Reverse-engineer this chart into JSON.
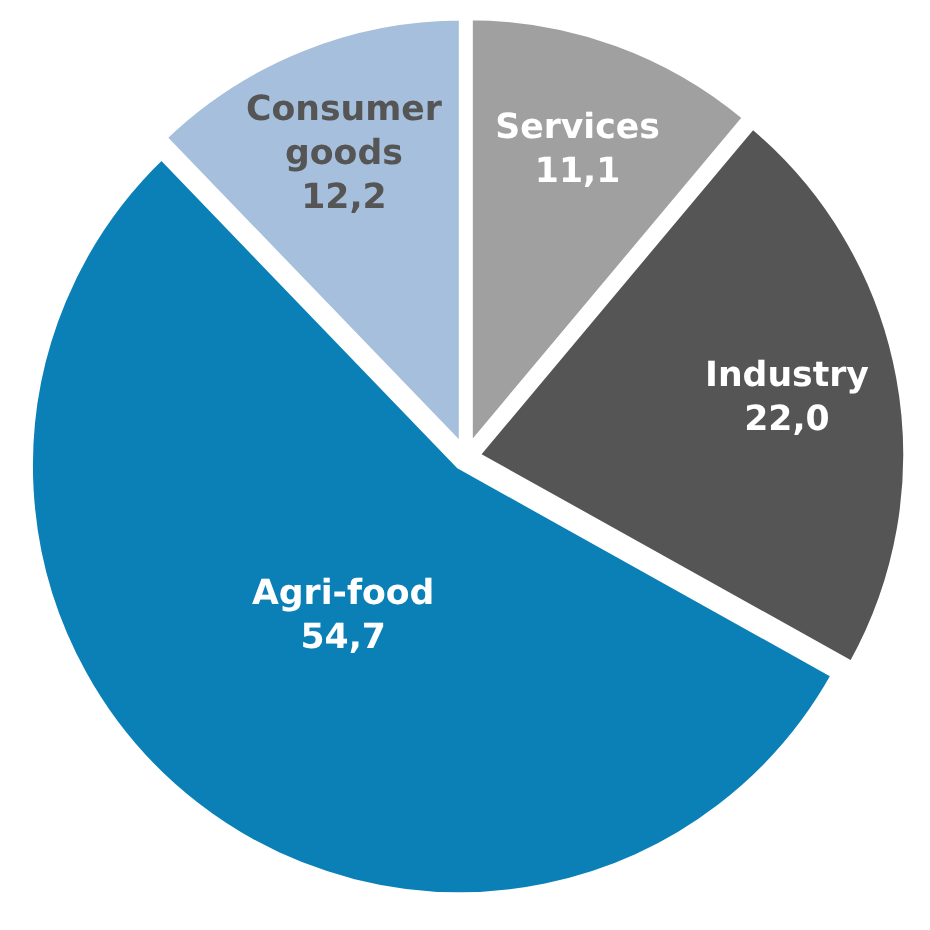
{
  "chart_data": {
    "type": "pie",
    "categories": [
      "Services",
      "Industry",
      "Agri-food",
      "Consumer goods"
    ],
    "values": [
      11.1,
      22.0,
      54.7,
      12.2
    ],
    "value_labels": [
      "11,1",
      "22,0",
      "54,7",
      "12,2"
    ],
    "colors": [
      "#a0a0a0",
      "#555555",
      "#0a80b6",
      "#a6bfdc"
    ]
  }
}
